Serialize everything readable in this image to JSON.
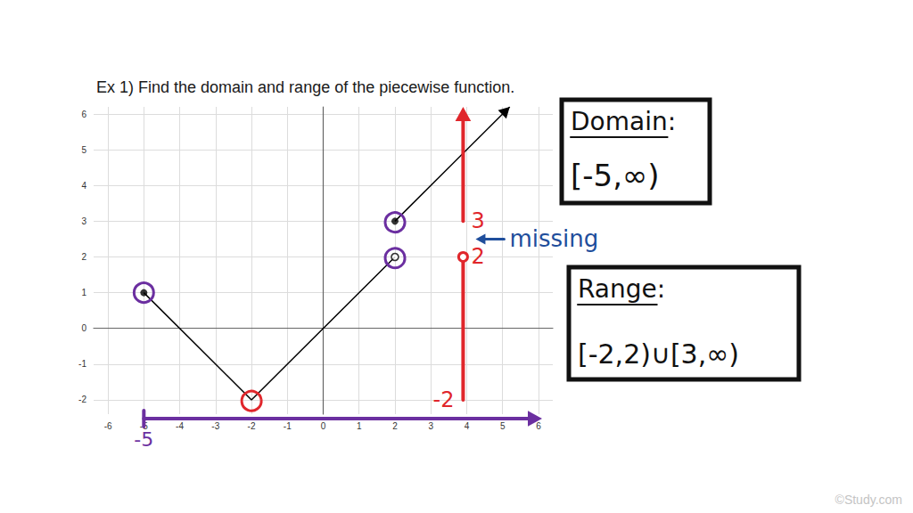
{
  "chart_data": {
    "type": "line",
    "title": "Ex 1) Find the domain and range of the piecewise function.",
    "xlim": [
      -6.4,
      6.4
    ],
    "ylim": [
      -2.4,
      6.2
    ],
    "xticks": [
      -6,
      -5,
      -4,
      -3,
      -2,
      -1,
      0,
      1,
      2,
      3,
      4,
      5,
      6
    ],
    "yticks": [
      -2,
      -1,
      0,
      1,
      2,
      3,
      4,
      5,
      6
    ],
    "grid": true,
    "series": [
      {
        "type": "line",
        "x": [
          -5,
          -2,
          2
        ],
        "values": [
          1,
          -2,
          2
        ],
        "color": "#000000"
      },
      {
        "type": "line",
        "x": [
          2,
          5.2
        ],
        "values": [
          3,
          6.2
        ],
        "color": "#000000",
        "marker": "arrow"
      },
      {
        "type": "scatter",
        "x": [
          -5,
          2
        ],
        "values": [
          1,
          3
        ],
        "color": "#000000",
        "marker": "filled"
      },
      {
        "type": "scatter",
        "x": [
          2
        ],
        "values": [
          2
        ],
        "color": "#000000",
        "marker": "open"
      }
    ],
    "circled": [
      {
        "x": -5,
        "y": 1,
        "color": "#6b2fa0"
      },
      {
        "x": 2,
        "y": 3,
        "color": "#6b2fa0"
      },
      {
        "x": 2,
        "y": 2,
        "color": "#6b2fa0"
      },
      {
        "x": -2,
        "y": -2,
        "color": "#e0262b"
      }
    ],
    "range_marker": {
      "x": 3.9,
      "segments": [
        [
          -2,
          2
        ],
        [
          3,
          null
        ]
      ],
      "labels": [
        3,
        2,
        -2
      ],
      "color": "#e0262b"
    },
    "domain_marker": {
      "from": -5,
      "color": "#6b2fa0"
    },
    "note": {
      "text": "missing",
      "color": "#1f4e9c"
    },
    "boxes": [
      {
        "label": "Domain:",
        "text": "[-5,∞)"
      },
      {
        "label": "Range:",
        "text": "[-2,2)∪[3,∞)"
      }
    ],
    "credit": "©Study.com"
  }
}
